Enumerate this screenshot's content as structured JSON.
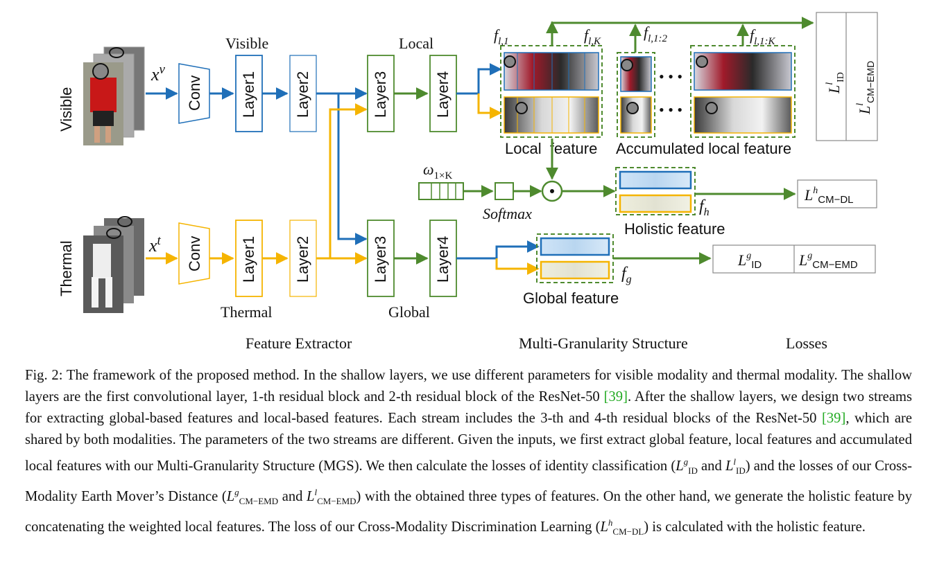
{
  "figure": {
    "row_labels": {
      "visible": "Visible",
      "thermal": "Thermal"
    },
    "inputs": {
      "visible": "x^v",
      "thermal": "x^t"
    },
    "blocks": {
      "conv": "Conv",
      "layer1": "Layer1",
      "layer2": "Layer2",
      "layer3": "Layer3",
      "layer4": "Layer4"
    },
    "stream_labels": {
      "visible": "Visible",
      "thermal": "Thermal",
      "local": "Local",
      "global": "Global"
    },
    "feature_labels": {
      "f_l1": "f_l,1",
      "f_lK": "f_l,K",
      "f_l12": "f_l,1:2",
      "f_l1K": "f_l,1:K",
      "local_feature": "Local  feature",
      "accumulated": "Accumulated local feature",
      "omega": "ω_1×K",
      "softmax": "Softmax",
      "odot": "⊙",
      "f_h": "f_h",
      "holistic": "Holistic feature",
      "f_g": "f_g",
      "global_feature": "Global feature",
      "dots": "• • •"
    },
    "losses": {
      "local_id": "L^l_ID",
      "local_emd": "L^l_CM−EMD",
      "dl": "L^h_CM−DL",
      "global_id": "L^g_ID",
      "global_emd": "L^g_CM−EMD"
    },
    "sections": {
      "extractor": "Feature Extractor",
      "mgs": "Multi-Granularity Structure",
      "losses": "Losses"
    },
    "colors": {
      "blue": "#1f6fb8",
      "orange": "#f5b400",
      "green": "#4e8a2e",
      "gray": "#7a7a7a"
    }
  },
  "caption": {
    "prefix": "Fig. 2:",
    "s1": "The framework of the proposed method. In the shallow layers, we use different parameters for visible modality and thermal modality. The shallow layers are the first convolutional layer, 1-th residual block and 2-th residual block of the ResNet-50",
    "ref1": "[39]",
    "s2": ". After the shallow layers, we design two streams for extracting global-based features and local-based features. Each stream includes the 3-th and 4-th residual blocks of the ResNet-50",
    "ref2": "[39]",
    "s3": ", which are shared by both modalities. The parameters of the two streams are different. Given the inputs, we first extract global feature, local features and accumulated local features with our Multi-Granularity Structure (MGS). We then calculate the losses of identity classification (",
    "s4": " and ",
    "s5": ") and the losses of our Cross-Modality Earth Mover’s Distance (",
    "s6": " and ",
    "s7": ") with the obtained three types of features. On the other hand, we generate the holistic feature by concatenating the weighted local features. The loss of our Cross-Modality Discrimination Learning (",
    "s8": ") is calculated with the holistic feature.",
    "math": {
      "L": "L",
      "g": "g",
      "l": "l",
      "h": "h",
      "id": "ID",
      "emd": "CM−EMD",
      "dl": "CM−DL"
    }
  }
}
